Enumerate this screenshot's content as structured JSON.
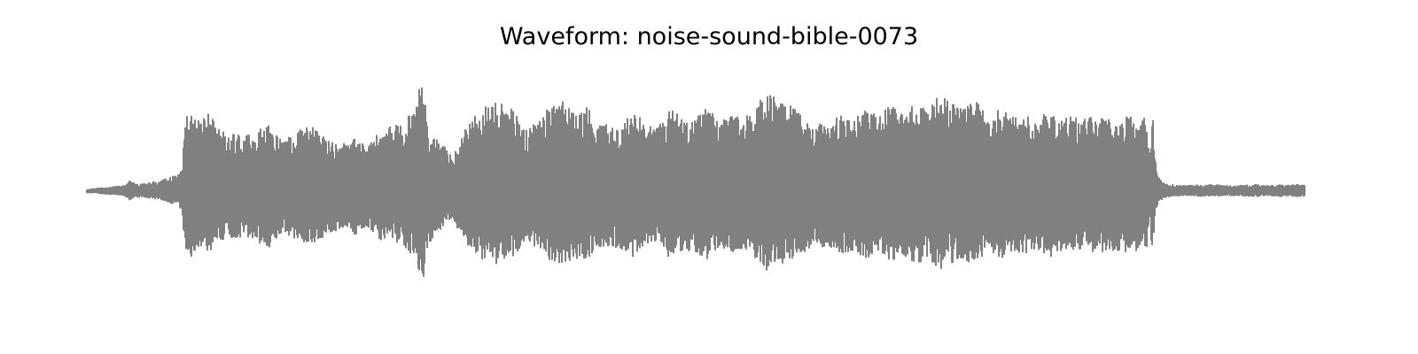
{
  "chart_data": {
    "type": "line",
    "title": "Waveform: noise-sound-bible-0073",
    "xlabel": "",
    "ylabel": "",
    "axes_visible": false,
    "grid": false,
    "legend": "none",
    "color": "#808080",
    "xlim": [
      0,
      1
    ],
    "ylim": [
      -1,
      1
    ],
    "envelope": {
      "x": [
        0.0,
        0.01,
        0.03,
        0.036,
        0.04,
        0.06,
        0.07,
        0.075,
        0.078,
        0.081,
        0.084,
        0.09,
        0.1,
        0.11,
        0.12,
        0.13,
        0.14,
        0.15,
        0.16,
        0.17,
        0.18,
        0.19,
        0.2,
        0.21,
        0.22,
        0.23,
        0.24,
        0.25,
        0.26,
        0.27,
        0.275,
        0.28,
        0.285,
        0.29,
        0.3,
        0.31,
        0.32,
        0.33,
        0.34,
        0.35,
        0.36,
        0.37,
        0.38,
        0.39,
        0.4,
        0.41,
        0.42,
        0.43,
        0.44,
        0.45,
        0.46,
        0.47,
        0.48,
        0.49,
        0.5,
        0.51,
        0.52,
        0.53,
        0.54,
        0.55,
        0.56,
        0.57,
        0.58,
        0.59,
        0.6,
        0.61,
        0.62,
        0.63,
        0.64,
        0.65,
        0.66,
        0.67,
        0.68,
        0.69,
        0.7,
        0.71,
        0.72,
        0.73,
        0.74,
        0.75,
        0.76,
        0.77,
        0.78,
        0.79,
        0.8,
        0.81,
        0.82,
        0.83,
        0.84,
        0.85,
        0.8,
        0.86,
        0.87,
        0.8,
        0.873,
        0.875,
        0.877,
        0.88,
        0.885,
        0.89,
        0.9,
        0.92,
        0.94,
        0.96,
        0.97,
        0.98,
        0.985,
        0.99,
        1.0
      ],
      "y": [
        0.02,
        0.03,
        0.05,
        0.1,
        0.06,
        0.09,
        0.13,
        0.14,
        0.2,
        0.65,
        0.72,
        0.6,
        0.65,
        0.5,
        0.48,
        0.46,
        0.52,
        0.58,
        0.42,
        0.48,
        0.55,
        0.52,
        0.44,
        0.4,
        0.46,
        0.36,
        0.5,
        0.55,
        0.58,
        0.7,
        1.0,
        0.58,
        0.45,
        0.42,
        0.3,
        0.5,
        0.68,
        0.72,
        0.76,
        0.68,
        0.5,
        0.62,
        0.7,
        0.76,
        0.68,
        0.72,
        0.58,
        0.56,
        0.6,
        0.68,
        0.54,
        0.56,
        0.7,
        0.6,
        0.62,
        0.7,
        0.58,
        0.64,
        0.6,
        0.74,
        0.82,
        0.76,
        0.7,
        0.62,
        0.58,
        0.56,
        0.66,
        0.6,
        0.7,
        0.62,
        0.72,
        0.64,
        0.76,
        0.68,
        0.8,
        0.74,
        0.7,
        0.78,
        0.6,
        0.7,
        0.62,
        0.66,
        0.58,
        0.68,
        0.62,
        0.62,
        0.62,
        0.62,
        0.62,
        0.62,
        0.62,
        0.62,
        0.62,
        0.62,
        0.3,
        0.72,
        0.3,
        0.12,
        0.07,
        0.06,
        0.05,
        0.06,
        0.05,
        0.06,
        0.05,
        0.06,
        0.05,
        0.06,
        0.06
      ]
    }
  }
}
